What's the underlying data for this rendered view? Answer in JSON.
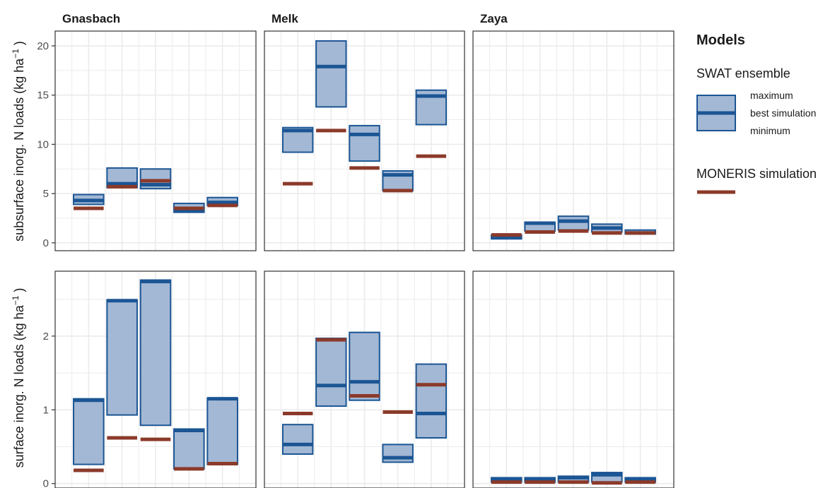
{
  "chart_data": {
    "type": "crossbar",
    "facet_columns": [
      "Gnasbach",
      "Melk",
      "Zaya"
    ],
    "x_tick_labels": [],
    "grid": true,
    "legend_position": "right",
    "colors": {
      "swat_fill": "#a3b8d4",
      "swat_stroke": "#1b5594",
      "moneris": "#8b3a2a",
      "grid": "#ebebeb",
      "panel_border": "#333333"
    },
    "legend": {
      "title": "Models",
      "swat_title": "SWAT ensemble",
      "swat_max": "maximum",
      "swat_best": "best simulation",
      "swat_min": "minimum",
      "moneris_title": "MONERIS simulation"
    },
    "rows": [
      {
        "ylabel_main": "subsurface inorg. N loads (kg ha",
        "ylabel_sup": "−1",
        "ylabel_close": " )",
        "ylim": [
          -0.8,
          21.5
        ],
        "yticks": [
          0,
          5,
          10,
          15,
          20
        ],
        "ytick_labels": [
          "0",
          "5",
          "10",
          "15",
          "20"
        ],
        "panels": [
          {
            "facet": "Gnasbach",
            "swat_min": [
              3.9,
              5.6,
              5.5,
              3.1,
              3.8
            ],
            "swat_best": [
              4.3,
              6.0,
              5.9,
              3.3,
              4.1
            ],
            "swat_max": [
              4.9,
              7.6,
              7.5,
              4.0,
              4.6
            ],
            "moneris": [
              3.5,
              5.7,
              6.3,
              3.5,
              3.8
            ]
          },
          {
            "facet": "Melk",
            "swat_min": [
              9.2,
              13.8,
              8.3,
              5.3,
              12.0
            ],
            "swat_best": [
              11.4,
              17.9,
              11.0,
              6.9,
              14.9
            ],
            "swat_max": [
              11.7,
              20.5,
              11.9,
              7.3,
              15.5
            ],
            "moneris": [
              6.0,
              11.4,
              7.6,
              5.3,
              8.8
            ]
          },
          {
            "facet": "Zaya",
            "swat_min": [
              0.4,
              1.2,
              1.3,
              1.1,
              0.9
            ],
            "swat_best": [
              0.6,
              2.0,
              2.2,
              1.5,
              1.0
            ],
            "swat_max": [
              0.8,
              2.1,
              2.7,
              1.9,
              1.3
            ],
            "moneris": [
              0.8,
              1.1,
              1.2,
              1.0,
              1.0
            ]
          }
        ]
      },
      {
        "ylabel_main": "surface inorg. N loads  (kg ha",
        "ylabel_sup": "−1",
        "ylabel_close": " )",
        "ylim": [
          -0.06,
          2.88
        ],
        "yticks": [
          0,
          1,
          2
        ],
        "ytick_labels": [
          "0",
          "1",
          "2"
        ],
        "panels": [
          {
            "facet": "Gnasbach",
            "swat_min": [
              0.26,
              0.93,
              0.79,
              0.2,
              0.26
            ],
            "swat_best": [
              1.13,
              2.48,
              2.74,
              0.72,
              1.15
            ],
            "swat_max": [
              1.15,
              2.49,
              2.76,
              0.74,
              1.16
            ],
            "moneris": [
              0.18,
              0.62,
              0.6,
              0.2,
              0.27
            ]
          },
          {
            "facet": "Melk",
            "swat_min": [
              0.4,
              1.05,
              1.13,
              0.29,
              0.62
            ],
            "swat_best": [
              0.53,
              1.33,
              1.38,
              0.35,
              0.95
            ],
            "swat_max": [
              0.8,
              1.97,
              2.05,
              0.53,
              1.62
            ],
            "moneris": [
              0.95,
              1.95,
              1.19,
              0.97,
              1.34
            ]
          },
          {
            "facet": "Zaya",
            "swat_min": [
              0.02,
              0.02,
              0.02,
              0.02,
              0.02
            ],
            "swat_best": [
              0.06,
              0.06,
              0.08,
              0.12,
              0.06
            ],
            "swat_max": [
              0.08,
              0.08,
              0.1,
              0.15,
              0.08
            ],
            "moneris": [
              0.02,
              0.02,
              0.02,
              0.01,
              0.02
            ]
          }
        ]
      }
    ]
  }
}
